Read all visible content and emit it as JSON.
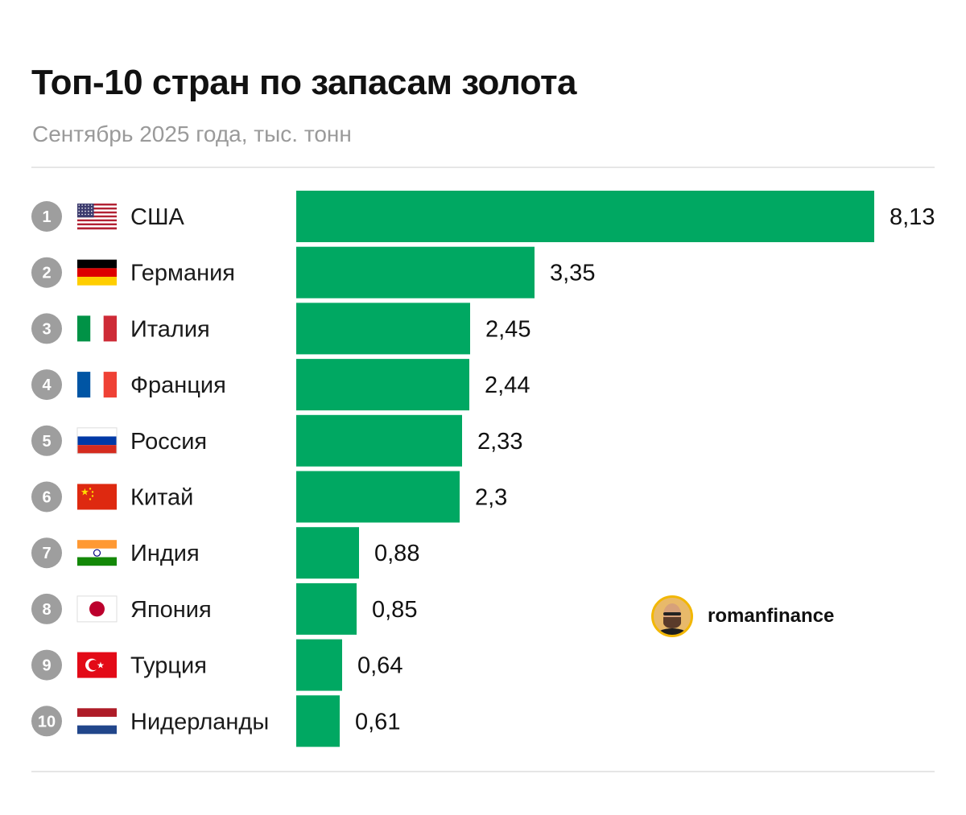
{
  "header": {
    "title": "Топ-10 стран по запасам золота",
    "subtitle": "Сентябрь 2025 года, тыс. тонн"
  },
  "brand": {
    "name": "romanfinance"
  },
  "colors": {
    "bar": "#00a862",
    "rank_badge": "#9e9e9e",
    "rule": "#e6e6e6"
  },
  "chart_data": {
    "type": "bar",
    "orientation": "horizontal",
    "title": "Топ-10 стран по запасам золота",
    "subtitle": "Сентябрь 2025 года, тыс. тонн",
    "xlim": [
      0,
      8.13
    ],
    "grid": false,
    "categories": [
      "США",
      "Германия",
      "Италия",
      "Франция",
      "Россия",
      "Китай",
      "Индия",
      "Япония",
      "Турция",
      "Нидерланды"
    ],
    "values": [
      8.13,
      3.35,
      2.45,
      2.44,
      2.33,
      2.3,
      0.88,
      0.85,
      0.64,
      0.61
    ],
    "value_labels": [
      "8,13",
      "3,35",
      "2,45",
      "2,44",
      "2,33",
      "2,3",
      "0,88",
      "0,85",
      "0,64",
      "0,61"
    ],
    "ranks": [
      "1",
      "2",
      "3",
      "4",
      "5",
      "6",
      "7",
      "8",
      "9",
      "10"
    ],
    "flags": [
      "us-flag-icon",
      "de-flag-icon",
      "it-flag-icon",
      "fr-flag-icon",
      "ru-flag-icon",
      "cn-flag-icon",
      "in-flag-icon",
      "jp-flag-icon",
      "tr-flag-icon",
      "nl-flag-icon"
    ]
  }
}
